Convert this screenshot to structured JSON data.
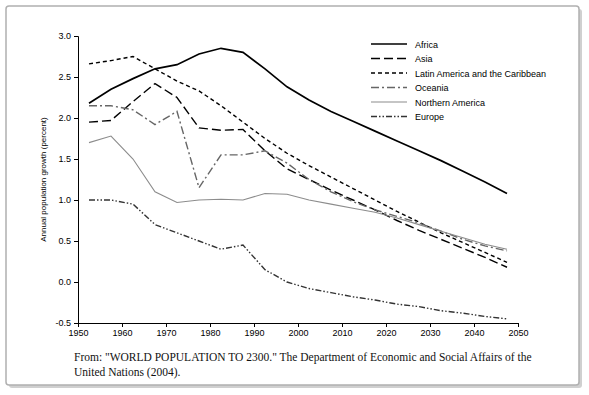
{
  "chart_data": {
    "type": "line",
    "y_label": "Annual population growth (percent)",
    "caption": "From: \"WORLD POPULATION TO 2300.\" The Department of Economic and Social Affairs of the United Nations (2004).",
    "x": [
      1952.5,
      1957.5,
      1962.5,
      1967.5,
      1972.5,
      1977.5,
      1982.5,
      1987.5,
      1992.5,
      1997.5,
      2002.5,
      2007.5,
      2012.5,
      2017.5,
      2022.5,
      2027.5,
      2032.5,
      2037.5,
      2042.5,
      2047.5
    ],
    "xlim": [
      1950,
      2050
    ],
    "xticks": [
      1950,
      1960,
      1970,
      1980,
      1990,
      2000,
      2010,
      2020,
      2030,
      2040,
      2050
    ],
    "ylim": [
      -0.5,
      3.0
    ],
    "yticks": [
      {
        "value": -0.5,
        "label": "-0.5"
      },
      {
        "value": 0,
        "label": "0.0"
      },
      0.5,
      {
        "value": 1,
        "label": "1.0"
      },
      1.5,
      {
        "value": 2,
        "label": "2.0"
      },
      2.5,
      {
        "value": 3,
        "label": "3.0"
      }
    ],
    "grid": false,
    "legend": "upper right",
    "series": [
      {
        "name": "Africa",
        "color": "#000000",
        "line_style": "solid",
        "values": [
          2.18,
          2.35,
          2.48,
          2.6,
          2.65,
          2.78,
          2.85,
          2.8,
          2.6,
          2.38,
          2.22,
          2.08,
          1.96,
          1.84,
          1.72,
          1.6,
          1.48,
          1.35,
          1.22,
          1.08
        ]
      },
      {
        "name": "Asia",
        "color": "#000000",
        "line_style": "dashed",
        "values": [
          1.95,
          1.97,
          2.2,
          2.42,
          2.25,
          1.88,
          1.85,
          1.86,
          1.6,
          1.38,
          1.25,
          1.12,
          1.0,
          0.88,
          0.75,
          0.63,
          0.52,
          0.41,
          0.3,
          0.18
        ]
      },
      {
        "name": "Latin America and the Caribbean",
        "color": "#000000",
        "line_style": "dotted",
        "values": [
          2.66,
          2.7,
          2.75,
          2.6,
          2.45,
          2.33,
          2.15,
          1.95,
          1.75,
          1.57,
          1.42,
          1.28,
          1.14,
          1.0,
          0.86,
          0.73,
          0.6,
          0.48,
          0.36,
          0.24
        ]
      },
      {
        "name": "Oceania",
        "color": "#666666",
        "line_style": "dashdot",
        "values": [
          2.15,
          2.15,
          2.1,
          1.92,
          2.08,
          1.15,
          1.55,
          1.55,
          1.6,
          1.45,
          1.25,
          1.1,
          0.98,
          0.88,
          0.8,
          0.72,
          0.62,
          0.52,
          0.44,
          0.38
        ]
      },
      {
        "name": "Northern America",
        "color": "#8c8c8c",
        "line_style": "solid",
        "values": [
          1.7,
          1.78,
          1.5,
          1.1,
          0.97,
          1.0,
          1.01,
          1.0,
          1.08,
          1.07,
          1.0,
          0.95,
          0.9,
          0.85,
          0.78,
          0.7,
          0.62,
          0.54,
          0.46,
          0.4
        ]
      },
      {
        "name": "Europe",
        "color": "#333333",
        "line_style": "dashdotdot",
        "values": [
          1.0,
          1.0,
          0.95,
          0.7,
          0.6,
          0.5,
          0.4,
          0.45,
          0.15,
          0.0,
          -0.08,
          -0.13,
          -0.18,
          -0.22,
          -0.27,
          -0.3,
          -0.35,
          -0.38,
          -0.42,
          -0.45
        ]
      }
    ]
  }
}
